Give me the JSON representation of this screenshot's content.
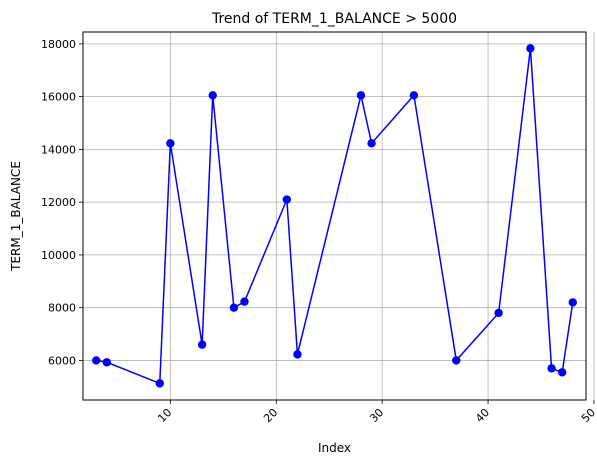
{
  "chart_data": {
    "type": "line",
    "title": "Trend of TERM_1_BALANCE > 5000",
    "xlabel": "Index",
    "ylabel": "TERM_1_BALANCE",
    "xlim": [
      1.75,
      49.25
    ],
    "ylim": [
      4500,
      18450
    ],
    "xticks": [
      10,
      20,
      30,
      40,
      50
    ],
    "yticks": [
      6000,
      8000,
      10000,
      12000,
      14000,
      16000,
      18000
    ],
    "grid": true,
    "line_color": "#0000ff",
    "marker": "circle",
    "series": [
      {
        "x": [
          3,
          4,
          9,
          10,
          13,
          14,
          16,
          17,
          21,
          22,
          28,
          29,
          33,
          37,
          41,
          44,
          46,
          47,
          48
        ],
        "y": [
          6000,
          5930,
          5130,
          14230,
          6600,
          16050,
          8000,
          8230,
          12100,
          6230,
          16050,
          14230,
          16050,
          6000,
          7800,
          17830,
          5700,
          5550,
          8200
        ]
      }
    ]
  }
}
